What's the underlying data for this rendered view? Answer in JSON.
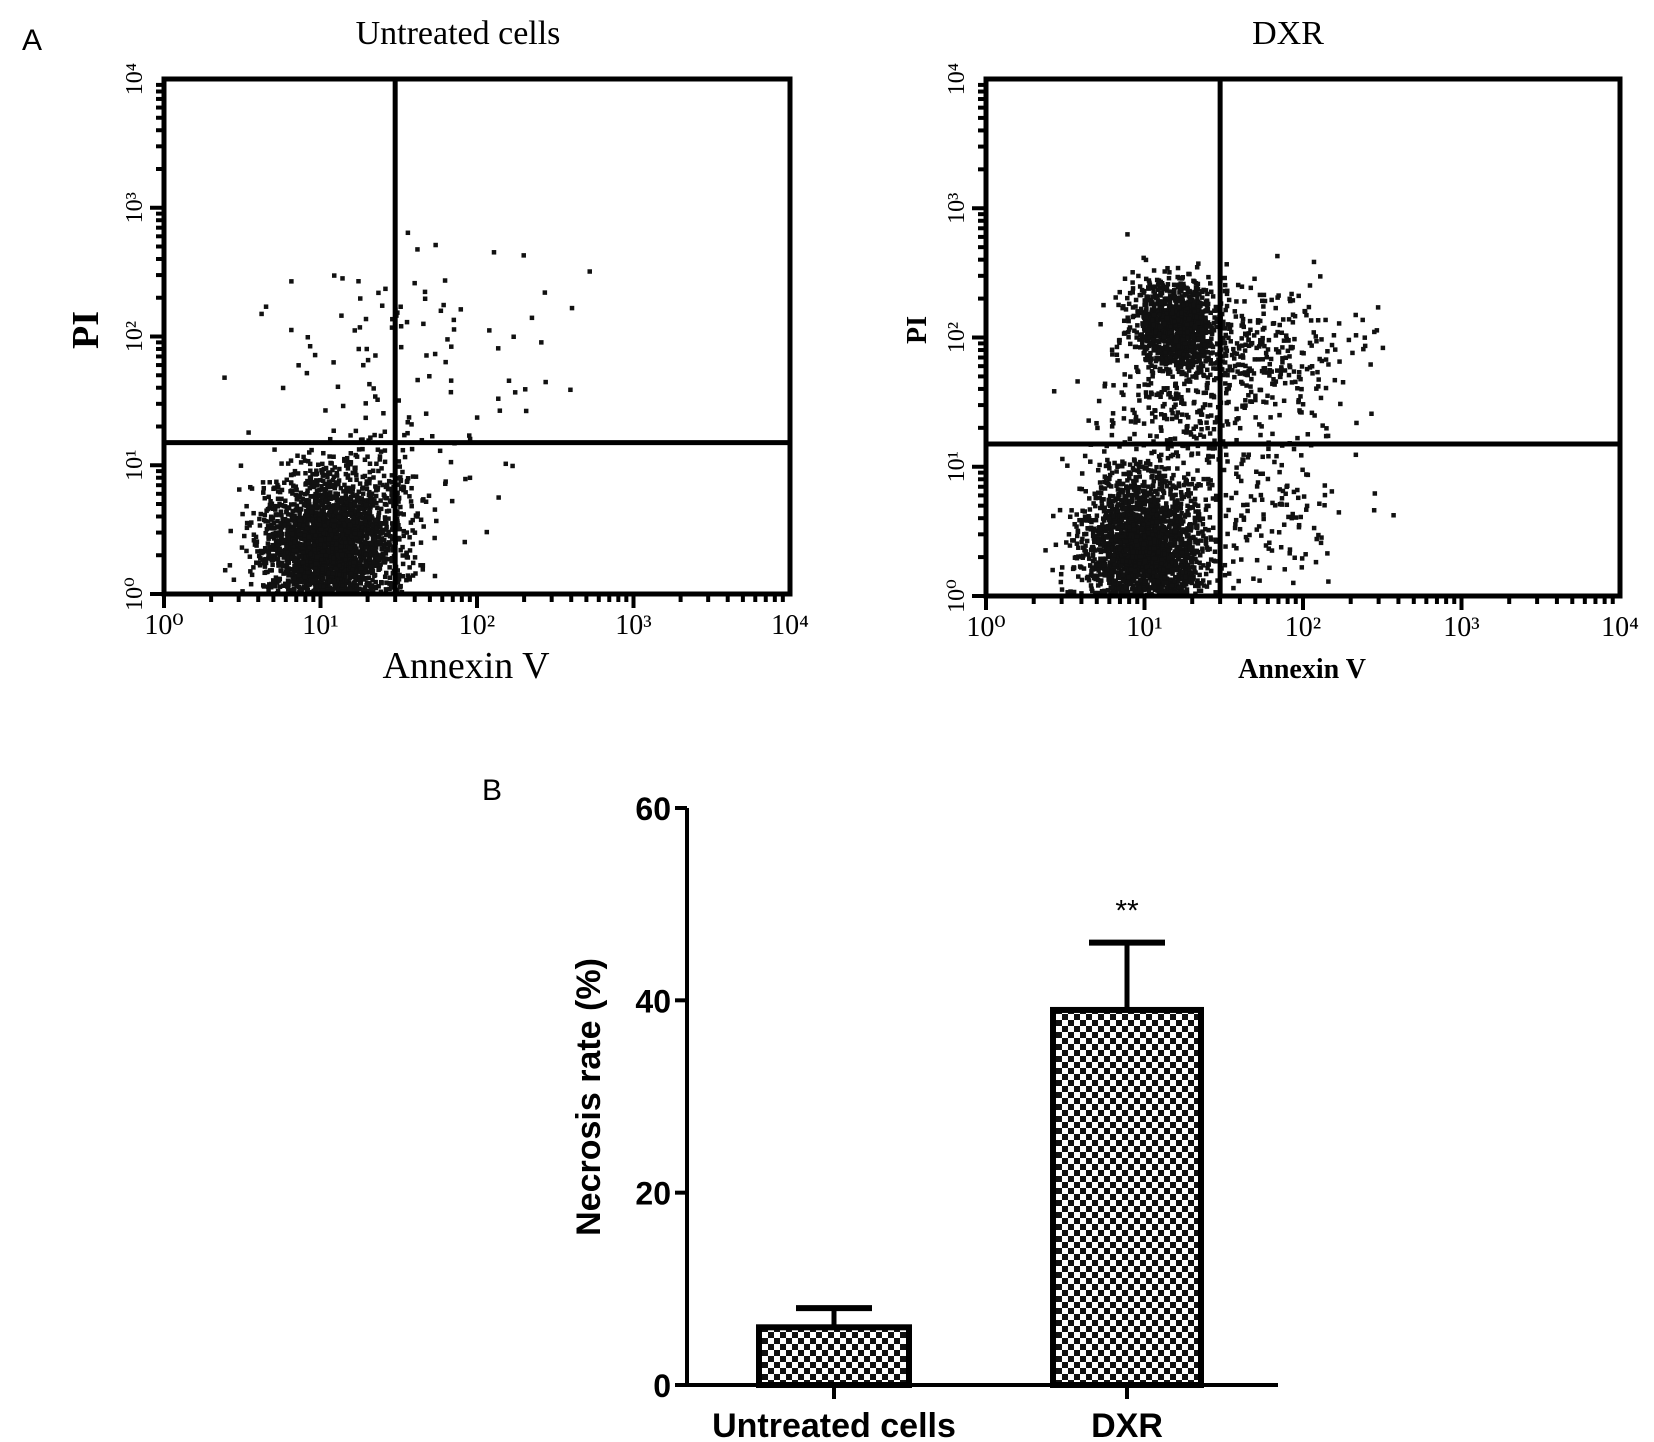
{
  "chart_data": [
    {
      "type": "scatter",
      "panel_label": "A",
      "title": "Untreated cells",
      "xlabel": "Annexin V",
      "ylabel": "PI",
      "xscale": "log",
      "yscale": "log",
      "xlim": [
        1,
        10000
      ],
      "ylim": [
        1,
        10000
      ],
      "xticks": [
        "10⁰",
        "10¹",
        "10²",
        "10³",
        "10⁴"
      ],
      "yticks": [
        "10⁰",
        "10¹",
        "10²",
        "10³",
        "10⁴"
      ],
      "gates": {
        "x": 30,
        "y": 15
      },
      "clusters": [
        {
          "center_log": [
            1.05,
            0.35
          ],
          "spread_log": [
            0.22,
            0.28
          ],
          "count": 2600
        },
        {
          "center_log": [
            1.35,
            0.8
          ],
          "spread_log": [
            0.25,
            0.25
          ],
          "count": 160
        },
        {
          "center_log": [
            1.45,
            1.9
          ],
          "spread_log": [
            0.5,
            0.45
          ],
          "count": 110
        }
      ],
      "seed": 7
    },
    {
      "type": "scatter",
      "title": "DXR",
      "xlabel": "Annexin V",
      "ylabel": "PI",
      "xscale": "log",
      "yscale": "log",
      "xlim": [
        1,
        10000
      ],
      "ylim": [
        1,
        10000
      ],
      "xticks": [
        "10⁰",
        "10¹",
        "10²",
        "10³",
        "10⁴"
      ],
      "yticks": [
        "10⁰",
        "10¹",
        "10²",
        "10³",
        "10⁴"
      ],
      "gates": {
        "x": 30,
        "y": 15
      },
      "clusters": [
        {
          "center_log": [
            1.0,
            0.35
          ],
          "spread_log": [
            0.2,
            0.3
          ],
          "count": 2400
        },
        {
          "center_log": [
            1.2,
            2.1
          ],
          "spread_log": [
            0.14,
            0.17
          ],
          "count": 1100
        },
        {
          "center_log": [
            1.3,
            1.5
          ],
          "spread_log": [
            0.28,
            0.35
          ],
          "count": 300
        },
        {
          "center_log": [
            1.8,
            1.9
          ],
          "spread_log": [
            0.28,
            0.25
          ],
          "count": 260
        },
        {
          "center_log": [
            1.75,
            0.7
          ],
          "spread_log": [
            0.25,
            0.35
          ],
          "count": 150
        }
      ],
      "seed": 13
    },
    {
      "type": "bar",
      "panel_label": "B",
      "categories": [
        "Untreated cells",
        "DXR"
      ],
      "values": [
        6,
        39
      ],
      "errors": [
        2,
        7
      ],
      "significance": [
        "",
        "**"
      ],
      "ylabel": "Necrosis rate (%)",
      "ylim": [
        0,
        60
      ],
      "yticks": [
        "0",
        "20",
        "40",
        "60"
      ],
      "pattern": "checkerboard"
    }
  ]
}
